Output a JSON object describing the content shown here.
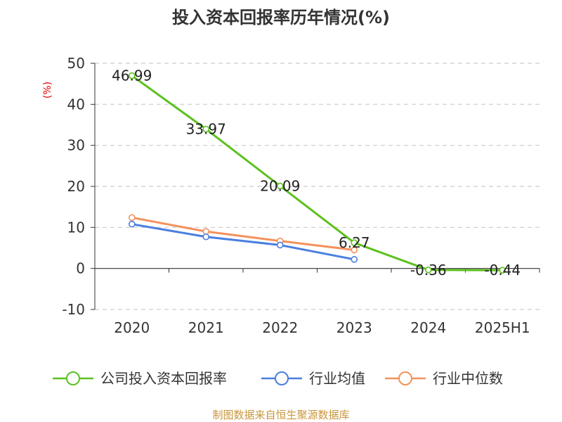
{
  "chart_data": {
    "type": "line",
    "title": "投入资本回报率历年情况(%)",
    "ylabel": "(%)",
    "xlabel": "",
    "categories": [
      "2020",
      "2021",
      "2022",
      "2023",
      "2024",
      "2025H1"
    ],
    "ylim": [
      -10,
      50
    ],
    "yticks": [
      -10,
      0,
      10,
      20,
      30,
      40,
      50
    ],
    "grid": true,
    "legend_position": "bottom",
    "series": [
      {
        "name": "公司投入资本回报率",
        "color": "#5cc11e",
        "values": [
          46.99,
          33.97,
          20.09,
          6.27,
          -0.36,
          -0.44
        ],
        "labels": [
          "46.99",
          "33.97",
          "20.09",
          "6.27",
          "-0.36",
          "-0.44"
        ]
      },
      {
        "name": "行业均值",
        "color": "#4a7fe0",
        "values": [
          10.8,
          7.7,
          5.7,
          2.2,
          null,
          null
        ]
      },
      {
        "name": "行业中位数",
        "color": "#f4915c",
        "values": [
          12.4,
          9.0,
          6.7,
          4.5,
          null,
          null
        ]
      }
    ]
  },
  "source": "制图数据来自恒生聚源数据库"
}
